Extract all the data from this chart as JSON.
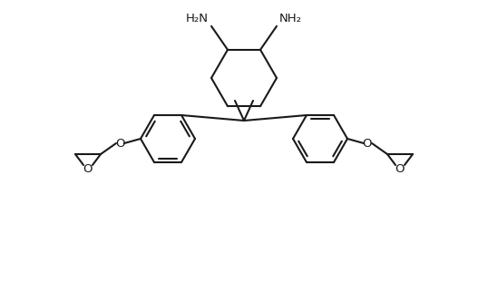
{
  "background_color": "#ffffff",
  "line_color": "#1a1a1a",
  "line_width": 1.5,
  "font_size": 9.5,
  "nh2_text": "NH₂",
  "h2n_text": "H₂N",
  "o_text": "O",
  "figsize": [
    5.38,
    3.11
  ],
  "dpi": 100
}
